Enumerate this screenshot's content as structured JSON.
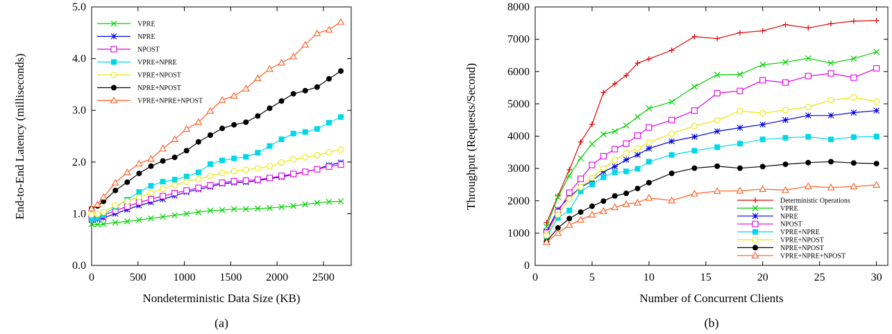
{
  "chart_data": [
    {
      "type": "line",
      "caption": "(a)",
      "xlabel": "Nondeterministic Data Size (KB)",
      "ylabel": "End-to-End Latency (milliseconds)",
      "xlim": [
        0,
        2800
      ],
      "ylim": [
        0.0,
        5.0
      ],
      "xticks": [
        "0",
        "500",
        "1000",
        "1500",
        "2000",
        "2500"
      ],
      "yticks": [
        "0.0",
        "1.0",
        "2.0",
        "3.0",
        "4.0",
        "5.0"
      ],
      "grid": false,
      "legend": "top-left",
      "x": [
        0,
        64,
        128,
        256,
        384,
        512,
        640,
        768,
        896,
        1024,
        1152,
        1280,
        1408,
        1536,
        1664,
        1792,
        1920,
        2048,
        2176,
        2304,
        2432,
        2560,
        2688
      ],
      "series": [
        {
          "name": "VPRE",
          "color": "#00d000",
          "marker": "x",
          "values": [
            0.8,
            0.79,
            0.8,
            0.83,
            0.85,
            0.88,
            0.91,
            0.94,
            0.97,
            1.0,
            1.03,
            1.06,
            1.07,
            1.09,
            1.09,
            1.1,
            1.11,
            1.13,
            1.15,
            1.18,
            1.21,
            1.23,
            1.24
          ]
        },
        {
          "name": "NPRE",
          "color": "#0000e0",
          "marker": "asterisk",
          "values": [
            0.88,
            0.89,
            0.92,
            1.0,
            1.08,
            1.16,
            1.22,
            1.28,
            1.35,
            1.42,
            1.47,
            1.52,
            1.58,
            1.6,
            1.61,
            1.64,
            1.68,
            1.71,
            1.76,
            1.81,
            1.86,
            1.94,
            1.99
          ]
        },
        {
          "name": "NPOST",
          "color": "#e000e0",
          "marker": "square",
          "values": [
            0.92,
            0.94,
            0.97,
            1.06,
            1.14,
            1.22,
            1.28,
            1.34,
            1.4,
            1.45,
            1.5,
            1.55,
            1.6,
            1.63,
            1.64,
            1.66,
            1.69,
            1.73,
            1.77,
            1.81,
            1.86,
            1.91,
            1.95
          ]
        },
        {
          "name": "VPRE+NPRE",
          "color": "#00d8e8",
          "marker": "filled-square",
          "values": [
            0.9,
            0.92,
            0.98,
            1.13,
            1.27,
            1.42,
            1.54,
            1.62,
            1.66,
            1.72,
            1.8,
            1.96,
            2.03,
            2.07,
            2.1,
            2.18,
            2.31,
            2.44,
            2.55,
            2.58,
            2.64,
            2.76,
            2.87
          ]
        },
        {
          "name": "VPRE+NPOST",
          "color": "#e8e800",
          "marker": "circle",
          "values": [
            0.98,
            0.99,
            1.03,
            1.16,
            1.24,
            1.32,
            1.4,
            1.48,
            1.55,
            1.62,
            1.67,
            1.73,
            1.79,
            1.82,
            1.85,
            1.88,
            1.92,
            1.99,
            2.05,
            2.09,
            2.13,
            2.19,
            2.24
          ]
        },
        {
          "name": "NPRE+NPOST",
          "color": "#000000",
          "marker": "filled-circle",
          "values": [
            1.1,
            1.15,
            1.24,
            1.45,
            1.61,
            1.78,
            1.92,
            2.02,
            2.09,
            2.22,
            2.39,
            2.52,
            2.65,
            2.72,
            2.77,
            2.89,
            3.04,
            3.18,
            3.32,
            3.38,
            3.45,
            3.61,
            3.76
          ]
        },
        {
          "name": "VPRE+NPRE+NPOST",
          "color": "#ff5a1f",
          "marker": "triangle",
          "values": [
            1.1,
            1.18,
            1.32,
            1.6,
            1.8,
            1.97,
            2.06,
            2.26,
            2.44,
            2.64,
            2.77,
            2.99,
            3.2,
            3.28,
            3.42,
            3.62,
            3.8,
            3.92,
            4.04,
            4.27,
            4.49,
            4.56,
            4.71
          ]
        }
      ]
    },
    {
      "type": "line",
      "caption": "(b)",
      "xlabel": "Number of Concurrent Clients",
      "ylabel": "Throughput (Requests/Second)",
      "xlim": [
        0,
        31
      ],
      "ylim": [
        0,
        8000
      ],
      "xticks": [
        "0",
        "5",
        "10",
        "15",
        "20",
        "25",
        "30"
      ],
      "yticks": [
        "0",
        "1000",
        "2000",
        "3000",
        "4000",
        "5000",
        "6000",
        "7000",
        "8000"
      ],
      "grid": false,
      "legend": "bottom-right",
      "x": [
        1,
        2,
        3,
        4,
        5,
        6,
        7,
        8,
        9,
        10,
        12,
        14,
        16,
        18,
        20,
        22,
        24,
        26,
        28,
        30
      ],
      "series": [
        {
          "name": "Deterministic Operations",
          "color": "#e00000",
          "marker": "plus",
          "values": [
            1320,
            2150,
            2960,
            3820,
            4370,
            5350,
            5620,
            5880,
            6260,
            6390,
            6660,
            7080,
            7020,
            7200,
            7260,
            7450,
            7350,
            7480,
            7560,
            7580
          ]
        },
        {
          "name": "VPRE",
          "color": "#00d000",
          "marker": "x",
          "values": [
            1200,
            2120,
            2780,
            3320,
            3760,
            4060,
            4150,
            4330,
            4600,
            4860,
            5060,
            5530,
            5900,
            5910,
            6210,
            6290,
            6410,
            6260,
            6400,
            6610
          ]
        },
        {
          "name": "NPRE",
          "color": "#0000e0",
          "marker": "asterisk",
          "values": [
            1050,
            1730,
            2120,
            2420,
            2610,
            2900,
            3060,
            3270,
            3420,
            3620,
            3840,
            3980,
            4150,
            4260,
            4360,
            4500,
            4640,
            4640,
            4730,
            4790
          ]
        },
        {
          "name": "NPOST",
          "color": "#e000e0",
          "marker": "square",
          "values": [
            1010,
            1650,
            2250,
            2680,
            3110,
            3380,
            3600,
            3770,
            4020,
            4270,
            4500,
            4790,
            5330,
            5400,
            5730,
            5660,
            5860,
            5940,
            5810,
            6100
          ]
        },
        {
          "name": "VPRE+NPRE",
          "color": "#00d8e8",
          "marker": "filled-square",
          "values": [
            880,
            1470,
            1700,
            2290,
            2510,
            2730,
            2880,
            2910,
            2990,
            3210,
            3420,
            3550,
            3660,
            3770,
            3900,
            3950,
            3980,
            3900,
            3970,
            3990
          ]
        },
        {
          "name": "VPRE+NPOST",
          "color": "#e8e800",
          "marker": "circle",
          "values": [
            930,
            1570,
            2050,
            2420,
            2710,
            3010,
            3260,
            3470,
            3620,
            3800,
            4080,
            4320,
            4490,
            4780,
            4710,
            4810,
            4900,
            5120,
            5200,
            5070
          ]
        },
        {
          "name": "NPRE+NPOST",
          "color": "#000000",
          "marker": "filled-circle",
          "values": [
            740,
            1160,
            1450,
            1650,
            1830,
            1990,
            2150,
            2230,
            2380,
            2560,
            2850,
            3010,
            3070,
            3010,
            3060,
            3130,
            3180,
            3210,
            3170,
            3150
          ]
        },
        {
          "name": "VPRE+NPRE+NPOST",
          "color": "#ff5a1f",
          "marker": "triangle",
          "values": [
            720,
            1000,
            1250,
            1410,
            1570,
            1680,
            1800,
            1900,
            1940,
            2090,
            2010,
            2220,
            2300,
            2310,
            2360,
            2330,
            2450,
            2410,
            2440,
            2490
          ]
        }
      ]
    }
  ]
}
